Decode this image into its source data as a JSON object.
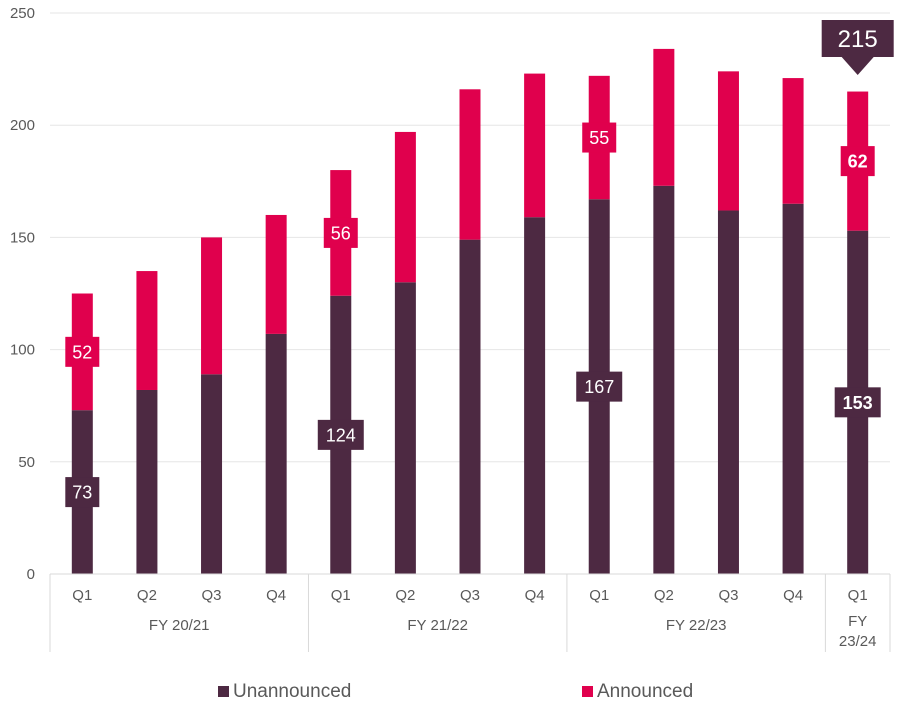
{
  "chart_data": {
    "type": "bar",
    "stacked": true,
    "title": "",
    "xlabel": "",
    "ylabel": "",
    "ylim": [
      0,
      250
    ],
    "yticks": [
      0,
      50,
      100,
      150,
      200,
      250
    ],
    "grid": true,
    "categories": [
      "Q1",
      "Q2",
      "Q3",
      "Q4",
      "Q1",
      "Q2",
      "Q3",
      "Q4",
      "Q1",
      "Q2",
      "Q3",
      "Q4",
      "Q1"
    ],
    "groups": [
      {
        "label": "FY 20/21",
        "count": 4
      },
      {
        "label": "FY 21/22",
        "count": 4
      },
      {
        "label": "FY 22/23",
        "count": 4
      },
      {
        "label": "FY\n23/24",
        "count": 1
      }
    ],
    "series": [
      {
        "name": "Unannounced",
        "color": "#4d2942",
        "values": [
          73,
          82,
          89,
          107,
          124,
          130,
          149,
          159,
          167,
          173,
          162,
          165,
          153
        ]
      },
      {
        "name": "Announced",
        "color": "#e0004d",
        "values": [
          52,
          53,
          61,
          53,
          56,
          67,
          67,
          64,
          55,
          61,
          62,
          56,
          62
        ]
      }
    ],
    "data_labels": [
      {
        "series": 0,
        "index": 0,
        "text": "73",
        "bold": false
      },
      {
        "series": 1,
        "index": 0,
        "text": "52",
        "bold": false
      },
      {
        "series": 0,
        "index": 4,
        "text": "124",
        "bold": false
      },
      {
        "series": 1,
        "index": 4,
        "text": "56",
        "bold": false
      },
      {
        "series": 0,
        "index": 8,
        "text": "167",
        "bold": false
      },
      {
        "series": 1,
        "index": 8,
        "text": "55",
        "bold": false
      },
      {
        "series": 0,
        "index": 12,
        "text": "153",
        "bold": true
      },
      {
        "series": 1,
        "index": 12,
        "text": "62",
        "bold": true
      }
    ],
    "callout": {
      "index": 12,
      "text": "215"
    },
    "legend": {
      "position": "bottom"
    }
  }
}
